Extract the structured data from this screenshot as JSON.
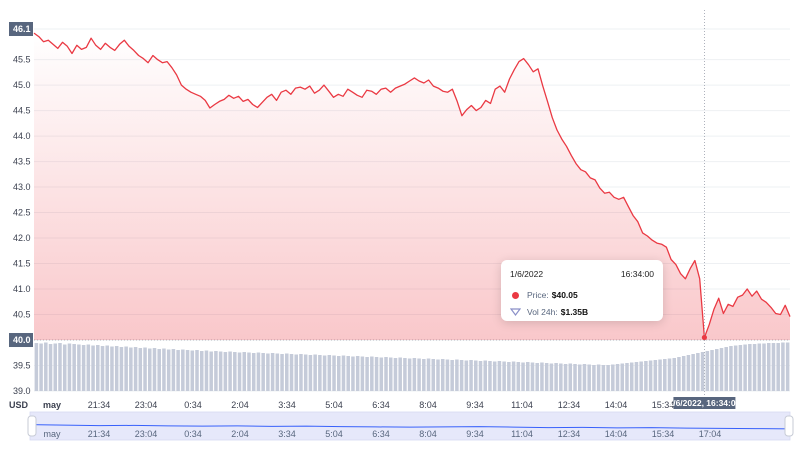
{
  "chart_data": {
    "type": "area",
    "currency_label": "USD",
    "y_ticks": [
      "46.1",
      "45.5",
      "45.0",
      "44.5",
      "44.0",
      "43.5",
      "43.0",
      "42.5",
      "42.0",
      "41.5",
      "41.0",
      "40.5",
      "40.0",
      "39.5",
      "39.0"
    ],
    "ylim": [
      39.0,
      46.1
    ],
    "baseline": 40.0,
    "x_ticks": [
      "may",
      "21:34",
      "23:04",
      "0:34",
      "2:04",
      "3:34",
      "5:04",
      "6:34",
      "8:04",
      "9:34",
      "11:04",
      "12:34",
      "14:04",
      "15:34",
      "17:04"
    ],
    "x_range": [
      0,
      159
    ],
    "cursor_x": 141,
    "cursor_label": "1/6/2022, 16:34:00",
    "series": [
      {
        "values": [
          46.02,
          45.95,
          45.85,
          45.88,
          45.8,
          45.72,
          45.84,
          45.76,
          45.62,
          45.78,
          45.7,
          45.74,
          45.92,
          45.78,
          45.7,
          45.82,
          45.74,
          45.68,
          45.8,
          45.88,
          45.76,
          45.68,
          45.58,
          45.52,
          45.44,
          45.58,
          45.5,
          45.44,
          45.46,
          45.34,
          45.2,
          45.0,
          44.92,
          44.86,
          44.82,
          44.78,
          44.7,
          44.55,
          44.62,
          44.68,
          44.72,
          44.8,
          44.74,
          44.78,
          44.68,
          44.72,
          44.62,
          44.56,
          44.66,
          44.76,
          44.82,
          44.7,
          44.86,
          44.9,
          44.82,
          44.94,
          44.96,
          44.92,
          44.98,
          44.84,
          44.9,
          45.0,
          44.88,
          44.76,
          44.82,
          44.78,
          44.92,
          44.86,
          44.8,
          44.76,
          44.9,
          44.88,
          44.82,
          44.92,
          44.94,
          44.86,
          44.94,
          44.98,
          45.02,
          45.08,
          45.14,
          45.08,
          45.04,
          45.1,
          44.98,
          44.94,
          44.88,
          44.86,
          44.92,
          44.68,
          44.4,
          44.52,
          44.6,
          44.5,
          44.56,
          44.7,
          44.64,
          44.92,
          44.98,
          44.86,
          45.12,
          45.3,
          45.46,
          45.52,
          45.4,
          45.26,
          45.32,
          44.98,
          44.68,
          44.36,
          44.12,
          43.94,
          43.8,
          43.62,
          43.46,
          43.34,
          43.3,
          43.18,
          43.14,
          42.98,
          42.88,
          42.9,
          42.8,
          42.76,
          42.8,
          42.62,
          42.44,
          42.32,
          42.1,
          42.04,
          41.96,
          41.9,
          41.88,
          41.82,
          41.58,
          41.48,
          41.3,
          41.2,
          41.4,
          41.56,
          41.2,
          40.05,
          40.3,
          40.6,
          40.82,
          40.52,
          40.7,
          40.66,
          40.84,
          40.88,
          41.0,
          40.86,
          40.96,
          40.8,
          40.74,
          40.64,
          40.52,
          40.5,
          40.68,
          40.46
        ]
      }
    ],
    "volume_levels": [
      0.96,
      0.95,
      0.97,
      0.94,
      0.95,
      0.96,
      0.93,
      0.95,
      0.94,
      0.93,
      0.92,
      0.93,
      0.91,
      0.92,
      0.9,
      0.91,
      0.89,
      0.9,
      0.88,
      0.89,
      0.87,
      0.88,
      0.86,
      0.87,
      0.85,
      0.86,
      0.84,
      0.85,
      0.83,
      0.84,
      0.82,
      0.83,
      0.82,
      0.81,
      0.82,
      0.8,
      0.81,
      0.79,
      0.8,
      0.79,
      0.78,
      0.79,
      0.78,
      0.77,
      0.78,
      0.77,
      0.76,
      0.77,
      0.76,
      0.75,
      0.76,
      0.75,
      0.74,
      0.75,
      0.74,
      0.73,
      0.74,
      0.73,
      0.72,
      0.73,
      0.72,
      0.71,
      0.72,
      0.71,
      0.7,
      0.71,
      0.7,
      0.69,
      0.7,
      0.69,
      0.68,
      0.69,
      0.68,
      0.67,
      0.68,
      0.67,
      0.66,
      0.67,
      0.66,
      0.65,
      0.66,
      0.65,
      0.64,
      0.65,
      0.64,
      0.63,
      0.64,
      0.63,
      0.62,
      0.63,
      0.62,
      0.61,
      0.62,
      0.61,
      0.6,
      0.61,
      0.6,
      0.59,
      0.6,
      0.59,
      0.58,
      0.59,
      0.58,
      0.57,
      0.58,
      0.57,
      0.56,
      0.57,
      0.56,
      0.55,
      0.56,
      0.55,
      0.54,
      0.55,
      0.54,
      0.53,
      0.54,
      0.53,
      0.52,
      0.53,
      0.52,
      0.52,
      0.53,
      0.54,
      0.55,
      0.56,
      0.57,
      0.58,
      0.59,
      0.6,
      0.61,
      0.62,
      0.63,
      0.64,
      0.65,
      0.66,
      0.68,
      0.7,
      0.72,
      0.74,
      0.76,
      0.78,
      0.8,
      0.82,
      0.84,
      0.86,
      0.88,
      0.9,
      0.91,
      0.92,
      0.93,
      0.94,
      0.94,
      0.95,
      0.95,
      0.96,
      0.96,
      0.96,
      0.97,
      0.97
    ],
    "navigator_values": [
      0.5,
      0.48,
      0.46,
      0.47,
      0.45,
      0.44,
      0.45,
      0.43,
      0.44,
      0.42,
      0.41,
      0.4,
      0.41,
      0.42,
      0.4,
      0.38,
      0.39,
      0.37,
      0.38,
      0.36,
      0.35,
      0.34,
      0.33
    ],
    "colors": {
      "line": "#ea3943",
      "area_top": "#ea3943",
      "volume": "#c5cbd9",
      "navigator_fill": "#e6e8fa",
      "navigator_line": "#3861fb",
      "label_bg": "#58667e"
    }
  },
  "tooltip": {
    "date": "1/6/2022",
    "time": "16:34:00",
    "price_label": "Price:",
    "price_value": "$40.05",
    "volume_label": "Vol 24h:",
    "volume_value": "$1.35B"
  }
}
